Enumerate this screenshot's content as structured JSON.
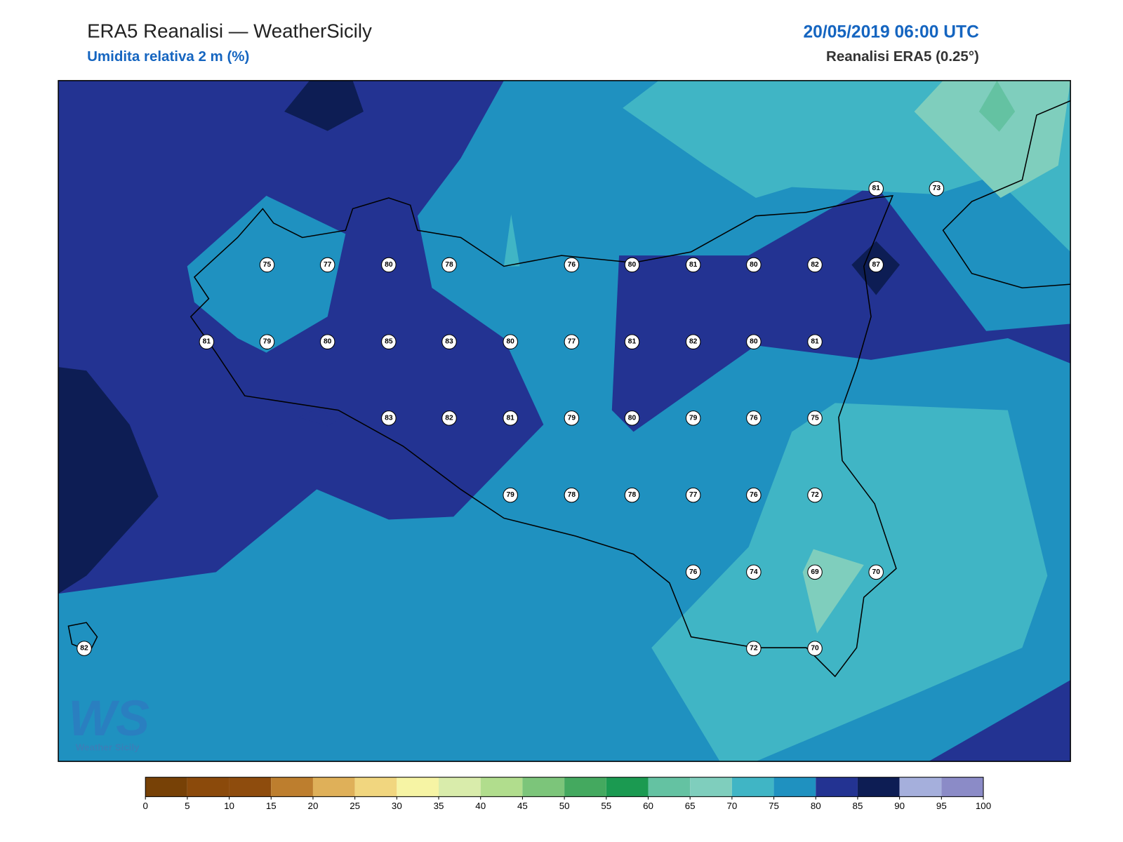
{
  "header": {
    "title": "ERA5 Reanalisi — WeatherSicily",
    "subtitle": "Umidita relativa 2 m (%)",
    "date": "20/05/2019 06:00 UTC",
    "source": "Reanalisi ERA5 (0.25°)"
  },
  "stations": [
    81,
    73,
    75,
    77,
    80,
    78,
    76,
    80,
    81,
    80,
    82,
    87,
    81,
    79,
    80,
    85,
    83,
    80,
    77,
    81,
    82,
    80,
    81,
    83,
    82,
    81,
    79,
    80,
    79,
    76,
    75,
    79,
    78,
    78,
    77,
    76,
    72,
    76,
    74,
    69,
    70,
    82,
    72,
    70
  ],
  "colorbar": {
    "ticks": [
      0,
      5,
      10,
      15,
      20,
      25,
      30,
      35,
      40,
      45,
      50,
      55,
      60,
      65,
      70,
      75,
      80,
      85,
      90,
      95,
      100
    ],
    "colors": [
      "#774106",
      "#8b4a0b",
      "#8e4c0d",
      "#bd7e2e",
      "#dfb059",
      "#f1d67f",
      "#f6f4a4",
      "#d9ecab",
      "#b1dd8d",
      "#7cc57a",
      "#44a95f",
      "#1b9a51",
      "#64c2a2",
      "#7fcebd",
      "#40b5c5",
      "#1f91c0",
      "#233392",
      "#0d1d54",
      "#a5afdc",
      "#8b8bc7"
    ]
  },
  "logo": {
    "mark": "WS",
    "name": "Weather Sicily"
  }
}
